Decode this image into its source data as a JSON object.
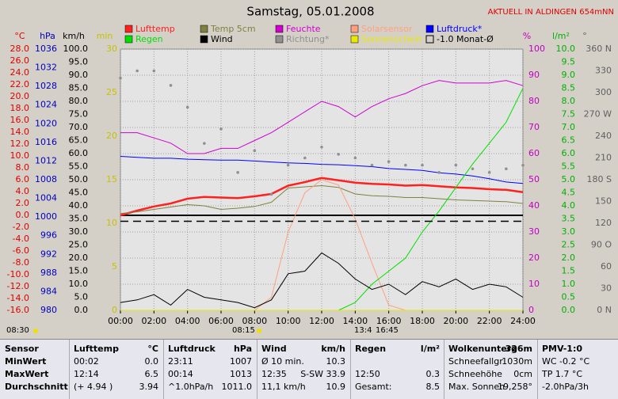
{
  "chart_data": {
    "type": "line",
    "title": "Samstag, 05.01.2008",
    "subtitle": "AKTUELL IN ALDINGEN 654mNN",
    "x": [
      0,
      1,
      2,
      3,
      4,
      5,
      6,
      7,
      8,
      9,
      10,
      11,
      12,
      13,
      14,
      15,
      16,
      17,
      18,
      19,
      20,
      21,
      22,
      23,
      24
    ],
    "xlim": [
      0,
      24
    ],
    "xticks": [
      {
        "value": 0,
        "label": "00:00"
      },
      {
        "value": 2,
        "label": "02:00"
      },
      {
        "value": 4,
        "label": "04:00"
      },
      {
        "value": 6,
        "label": "06:00"
      },
      {
        "value": 8,
        "label": "08:00"
      },
      {
        "value": 10,
        "label": "10:00"
      },
      {
        "value": 12,
        "label": "12:00"
      },
      {
        "value": 14,
        "label": "14:00"
      },
      {
        "value": 16,
        "label": "16:00"
      },
      {
        "value": 18,
        "label": "18:00"
      },
      {
        "value": 20,
        "label": "20:00"
      },
      {
        "value": 22,
        "label": "22:00"
      },
      {
        "value": 24,
        "label": "24:00"
      }
    ],
    "grid": true,
    "axes": [
      {
        "unit": "°C",
        "color": "#e00000",
        "lim": [
          -16,
          28
        ],
        "ticks": [
          {
            "value": 28,
            "label": "28.0"
          },
          {
            "value": 26,
            "label": "26.0"
          },
          {
            "value": 24,
            "label": "24.0"
          },
          {
            "value": 22,
            "label": "22.0"
          },
          {
            "value": 20,
            "label": "20.0"
          },
          {
            "value": 18,
            "label": "18.0"
          },
          {
            "value": 16,
            "label": "16.0"
          },
          {
            "value": 14,
            "label": "14.0"
          },
          {
            "value": 12,
            "label": "12.0"
          },
          {
            "value": 10,
            "label": "10.0"
          },
          {
            "value": 8,
            "label": "8.0"
          },
          {
            "value": 6,
            "label": "6.0"
          },
          {
            "value": 4,
            "label": "4.0"
          },
          {
            "value": 2,
            "label": "2.0"
          },
          {
            "value": 0,
            "label": "0.0"
          },
          {
            "value": -2,
            "label": "-2.0"
          },
          {
            "value": -4,
            "label": "-4.0"
          },
          {
            "value": -6,
            "label": "-6.0"
          },
          {
            "value": -8,
            "label": "-8.0"
          },
          {
            "value": -10,
            "label": "-10.0"
          },
          {
            "value": -12,
            "label": "-12.0"
          },
          {
            "value": -14,
            "label": "-14.0"
          },
          {
            "value": -16,
            "label": "-16.0"
          }
        ]
      },
      {
        "unit": "hPa",
        "color": "#0000c0",
        "lim": [
          980,
          1036
        ],
        "ticks": [
          1036,
          1032,
          1028,
          1024,
          1020,
          1016,
          1012,
          1008,
          1004,
          1000,
          996,
          992,
          988,
          984,
          980
        ]
      },
      {
        "unit": "km/h",
        "color": "#000000",
        "lim": [
          0,
          100
        ],
        "ticks": [
          {
            "value": 100,
            "label": "100.0"
          },
          {
            "value": 95,
            "label": "95.0"
          },
          {
            "value": 90,
            "label": "90.0"
          },
          {
            "value": 85,
            "label": "85.0"
          },
          {
            "value": 80,
            "label": "80.0"
          },
          {
            "value": 75,
            "label": "75.0"
          },
          {
            "value": 70,
            "label": "70.0"
          },
          {
            "value": 65,
            "label": "65.0"
          },
          {
            "value": 60,
            "label": "60.0"
          },
          {
            "value": 55,
            "label": "55.0"
          },
          {
            "value": 50,
            "label": "50.0"
          },
          {
            "value": 45,
            "label": "45.0"
          },
          {
            "value": 40,
            "label": "40.0"
          },
          {
            "value": 35,
            "label": "35.0"
          },
          {
            "value": 30,
            "label": "30.0"
          },
          {
            "value": 25,
            "label": "25.0"
          },
          {
            "value": 20,
            "label": "20.0"
          },
          {
            "value": 15,
            "label": "15.0"
          },
          {
            "value": 10,
            "label": "10.0"
          },
          {
            "value": 5,
            "label": "5.0"
          },
          {
            "value": 0,
            "label": "0.0"
          }
        ]
      },
      {
        "unit": "min",
        "color": "#c8c000",
        "lim": [
          0,
          30
        ],
        "ticks": [
          30,
          25,
          20,
          15,
          10,
          5,
          0
        ]
      },
      {
        "unit": "%",
        "color": "#c000c0",
        "lim": [
          0,
          100
        ],
        "ticks": [
          100,
          90,
          80,
          70,
          60,
          50,
          40,
          30,
          20,
          10,
          0
        ]
      },
      {
        "unit": "l/m²",
        "color": "#00b000",
        "lim": [
          0,
          10
        ],
        "ticks": [
          {
            "value": 10,
            "label": "10.0"
          },
          {
            "value": 9.5,
            "label": "9.5"
          },
          {
            "value": 9,
            "label": "9.0"
          },
          {
            "value": 8.5,
            "label": "8.5"
          },
          {
            "value": 8,
            "label": "8.0"
          },
          {
            "value": 7.5,
            "label": "7.5"
          },
          {
            "value": 7,
            "label": "7.0"
          },
          {
            "value": 6.5,
            "label": "6.5"
          },
          {
            "value": 6,
            "label": "6.0"
          },
          {
            "value": 5.5,
            "label": "5.5"
          },
          {
            "value": 5,
            "label": "5.0"
          },
          {
            "value": 4.5,
            "label": "4.5"
          },
          {
            "value": 4,
            "label": "4.0"
          },
          {
            "value": 3.5,
            "label": "3.5"
          },
          {
            "value": 3,
            "label": "3.0"
          },
          {
            "value": 2.5,
            "label": "2.5"
          },
          {
            "value": 2,
            "label": "2.0"
          },
          {
            "value": 1.5,
            "label": "1.5"
          },
          {
            "value": 1,
            "label": "1.0"
          },
          {
            "value": 0.5,
            "label": "0.5"
          },
          {
            "value": 0,
            "label": "0.0"
          }
        ]
      },
      {
        "unit": "°",
        "color": "#606060",
        "lim": [
          0,
          360
        ],
        "ticks": [
          {
            "value": 360,
            "label": "360 N"
          },
          330,
          300,
          {
            "value": 270,
            "label": "270 W"
          },
          240,
          210,
          {
            "value": 180,
            "label": "180 S"
          },
          150,
          120,
          {
            "value": 90,
            "label": "90 O"
          },
          60,
          30,
          {
            "value": 0,
            "label": "0 N"
          }
        ]
      }
    ],
    "series": [
      {
        "name": "Lufttemp",
        "color": "#ff2020",
        "axis": 0,
        "width": 2.5,
        "values": [
          0.0,
          0.8,
          1.5,
          2.0,
          2.8,
          3.1,
          3.0,
          2.9,
          3.2,
          3.6,
          5.0,
          5.6,
          6.3,
          5.9,
          5.5,
          5.3,
          5.2,
          5.0,
          5.1,
          4.9,
          4.7,
          4.6,
          4.4,
          4.3,
          3.9
        ]
      },
      {
        "name": "Temp 5cm",
        "color": "#808040",
        "axis": 0,
        "width": 1,
        "values": [
          0.3,
          0.6,
          1.0,
          1.4,
          1.8,
          1.6,
          1.0,
          1.2,
          1.5,
          2.2,
          4.6,
          4.8,
          5.0,
          4.7,
          3.6,
          3.3,
          3.2,
          3.0,
          3.0,
          2.8,
          2.6,
          2.5,
          2.4,
          2.3,
          2.0
        ]
      },
      {
        "name": "Feuchte",
        "color": "#d000d0",
        "axis": 4,
        "width": 1,
        "values": [
          68,
          68,
          66,
          64,
          60,
          60,
          62,
          62,
          65,
          68,
          72,
          76,
          80,
          78,
          74,
          78,
          81,
          83,
          86,
          88,
          87,
          87,
          87,
          88,
          86
        ]
      },
      {
        "name": "Solarsensor",
        "color": "#ffa080",
        "axis": 4,
        "width": 1,
        "values": [
          0,
          0,
          0,
          0,
          0,
          0,
          0,
          0,
          0,
          5,
          30,
          45,
          50,
          48,
          35,
          18,
          2,
          0,
          0,
          0,
          0,
          0,
          0,
          0,
          0
        ]
      },
      {
        "name": "Luftdruck*",
        "color": "#0000ff",
        "axis": 1,
        "width": 1,
        "values": [
          1013,
          1012.8,
          1012.6,
          1012.6,
          1012.4,
          1012.3,
          1012.2,
          1012.2,
          1012.0,
          1011.8,
          1011.6,
          1011.5,
          1011.3,
          1011.2,
          1011.0,
          1010.8,
          1010.4,
          1010.2,
          1010.0,
          1009.5,
          1009.2,
          1008.8,
          1008.2,
          1007.5,
          1007.2
        ]
      },
      {
        "name": "Regen",
        "color": "#00e000",
        "axis": 5,
        "width": 1,
        "values": [
          null,
          null,
          null,
          null,
          null,
          null,
          null,
          null,
          null,
          null,
          null,
          null,
          null,
          0,
          0.3,
          1.0,
          1.5,
          2.0,
          3.0,
          3.8,
          4.7,
          5.6,
          6.4,
          7.2,
          8.5
        ]
      },
      {
        "name": "Wind",
        "color": "#000000",
        "axis": 2,
        "width": 1,
        "values": [
          3,
          4,
          6,
          2,
          8,
          5,
          4,
          3,
          1,
          4,
          14,
          15,
          22,
          18,
          12,
          8,
          10,
          6,
          11,
          9,
          12,
          8,
          10,
          9,
          5
        ]
      },
      {
        "name": "Richtung*",
        "color": "#909090",
        "axis": 6,
        "mark": "dots",
        "values": [
          320,
          330,
          330,
          310,
          280,
          230,
          250,
          190,
          220,
          160,
          200,
          210,
          225,
          215,
          210,
          200,
          205,
          200,
          200,
          190,
          200,
          195,
          190,
          195,
          200
        ]
      },
      {
        "name": "Sonnenschein",
        "color": "#e8e800",
        "axis": 3,
        "width": 1,
        "values": [
          0,
          0,
          0,
          0,
          0,
          0,
          0,
          0,
          0,
          0,
          0,
          0,
          0,
          0,
          0,
          0,
          0,
          0,
          0,
          0,
          0,
          0,
          0,
          0,
          0
        ]
      },
      {
        "name": "-1.0 Monat-Ø",
        "color": "#000000",
        "axis": 0,
        "mark": "hline",
        "value": -1.0
      }
    ],
    "sun_times": [
      "08:30",
      "08:15",
      "13:4",
      "16:45"
    ]
  },
  "table": {
    "header": [
      [
        "Sensor"
      ],
      [
        "Lufttemp",
        "°C"
      ],
      [
        "Luftdruck",
        "hPa"
      ],
      [
        "Wind",
        "km/h"
      ],
      [
        "Regen",
        "l/m²"
      ],
      [
        "Wolkenunterg",
        "326m"
      ],
      [
        "PMV-1:0"
      ]
    ],
    "rows": [
      [
        [
          "MinWert"
        ],
        [
          "00:02",
          "0.0"
        ],
        [
          "23:11",
          "1007"
        ],
        [
          "Ø 10 min.",
          "10.3"
        ],
        [],
        [
          "Schneefallgr",
          "1030m"
        ],
        [
          "WC -0.2 °C"
        ]
      ],
      [
        [
          "MaxWert"
        ],
        [
          "12:14",
          "6.5"
        ],
        [
          "00:14",
          "1013"
        ],
        [
          "12:35",
          "S-SW 33.9"
        ],
        [
          "12:50",
          "0.3"
        ],
        [
          "Schneehöhe",
          "0cm"
        ],
        [
          "TP 1.7 °C"
        ]
      ],
      [
        [
          "Durchschnitt"
        ],
        [
          "(+ 4.94 )",
          "3.94"
        ],
        [
          "^1.0hPa/h",
          "1011.0"
        ],
        [
          "11,1 km/h",
          "10.9"
        ],
        [
          "Gesamt:",
          "8.5"
        ],
        [
          "Max. Sonnen",
          "19,258°"
        ],
        [
          "-2.0hPa/3h"
        ]
      ]
    ]
  }
}
